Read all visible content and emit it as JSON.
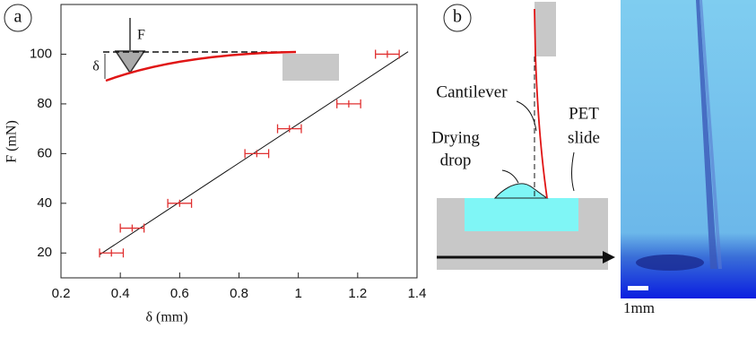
{
  "chart_data": {
    "type": "scatter",
    "xlabel": "δ (mm)",
    "ylabel": "F (mN)",
    "x": [
      0.37,
      0.44,
      0.6,
      0.86,
      0.97,
      1.17,
      1.3
    ],
    "values": [
      20,
      30,
      40,
      60,
      70,
      80,
      100
    ],
    "x_error": [
      0.04,
      0.04,
      0.04,
      0.04,
      0.04,
      0.04,
      0.04
    ],
    "fit": {
      "x": [
        0.33,
        1.37
      ],
      "values": [
        19.3,
        101
      ]
    },
    "xlim": [
      0.2,
      1.4
    ],
    "xticks": [
      0.2,
      0.4,
      0.6,
      0.8,
      1,
      1.2,
      1.4
    ],
    "ylim": [
      10,
      120
    ],
    "yticks": [
      20,
      40,
      60,
      80,
      100
    ],
    "color": "#e03030",
    "panel_label": "a",
    "inset": {
      "force_label": "F",
      "delta_label": "δ"
    }
  },
  "panel_b": {
    "panel_label": "b",
    "cantilever": "Cantilever",
    "drop": [
      "Drying",
      "drop"
    ],
    "slide": [
      "PET",
      "slide"
    ],
    "scale_bar": "1mm"
  }
}
